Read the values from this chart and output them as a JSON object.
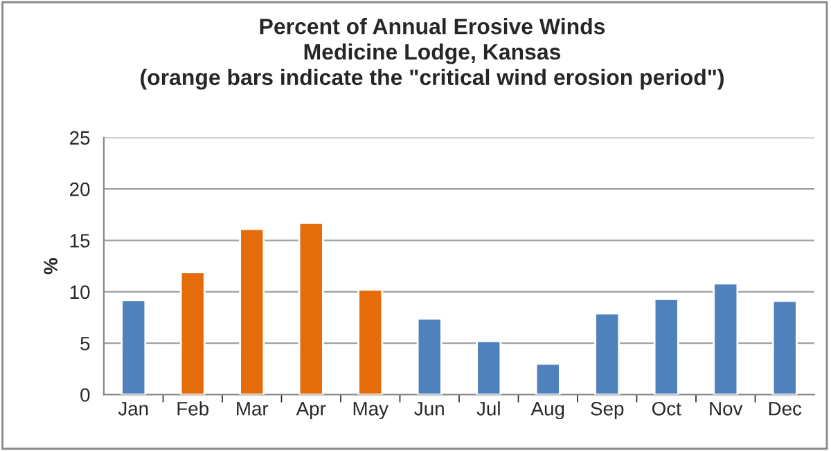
{
  "chart_data": {
    "type": "bar",
    "title": "Percent of Annual Erosive Winds\nMedicine Lodge, Kansas\n(orange bars indicate the \"critical wind erosion period\")",
    "ylabel": "%",
    "categories": [
      "Jan",
      "Feb",
      "Mar",
      "Apr",
      "May",
      "Jun",
      "Jul",
      "Aug",
      "Sep",
      "Oct",
      "Nov",
      "Dec"
    ],
    "values": [
      9.2,
      11.9,
      16.1,
      16.7,
      10.2,
      7.4,
      5.2,
      3.0,
      7.9,
      9.3,
      10.8,
      9.1
    ],
    "colors": [
      "#4f81bd",
      "#e46c0a",
      "#e46c0a",
      "#e46c0a",
      "#e46c0a",
      "#4f81bd",
      "#4f81bd",
      "#4f81bd",
      "#4f81bd",
      "#4f81bd",
      "#4f81bd",
      "#4f81bd"
    ],
    "ylim": [
      0,
      25
    ],
    "yticks": [
      0,
      5,
      10,
      15,
      20,
      25
    ],
    "grid": "y"
  }
}
